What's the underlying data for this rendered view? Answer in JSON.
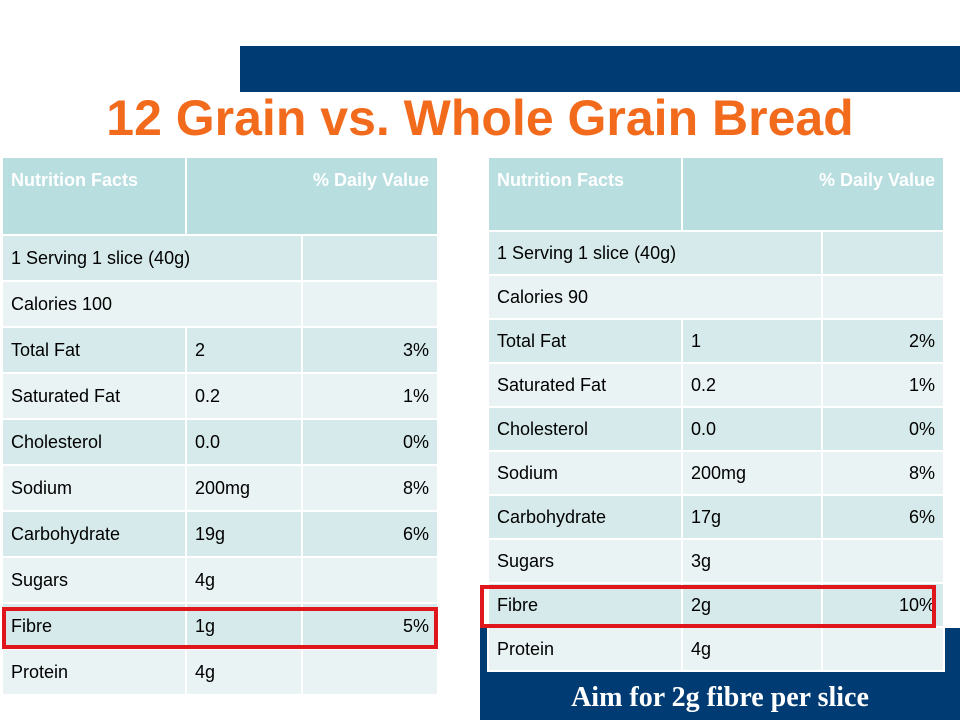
{
  "title": "12 Grain vs. Whole Grain Bread",
  "subtitle": "Aim for 2g fibre per slice",
  "colors": {
    "title": "#f26b1d",
    "bar": "#003b73",
    "header": "#b8dee0",
    "highlight": "#e0161d"
  },
  "left_table": {
    "header": [
      "Nutrition Facts",
      "% Daily Value"
    ],
    "serving": "1 Serving 1 slice (40g)",
    "calories": "Calories 100",
    "rows": [
      [
        "Total Fat",
        "2",
        "3%"
      ],
      [
        "Saturated Fat",
        "0.2",
        "1%"
      ],
      [
        "Cholesterol",
        "0.0",
        "0%"
      ],
      [
        "Sodium",
        "200mg",
        "8%"
      ],
      [
        "Carbohydrate",
        "19g",
        "6%"
      ],
      [
        "Sugars",
        "4g",
        ""
      ],
      [
        "Fibre",
        "1g",
        "5%"
      ],
      [
        "Protein",
        "4g",
        ""
      ]
    ]
  },
  "right_table": {
    "header": [
      "Nutrition Facts",
      "% Daily Value"
    ],
    "serving": "1 Serving 1 slice (40g)",
    "calories": "Calories 90",
    "rows": [
      [
        "Total Fat",
        "1",
        "2%"
      ],
      [
        "Saturated Fat",
        "0.2",
        "1%"
      ],
      [
        "Cholesterol",
        "0.0",
        "0%"
      ],
      [
        "Sodium",
        "200mg",
        "8%"
      ],
      [
        "Carbohydrate",
        "17g",
        "6%"
      ],
      [
        "Sugars",
        "3g",
        ""
      ],
      [
        "Fibre",
        "2g",
        "10%"
      ],
      [
        "Protein",
        "4g",
        ""
      ]
    ]
  }
}
